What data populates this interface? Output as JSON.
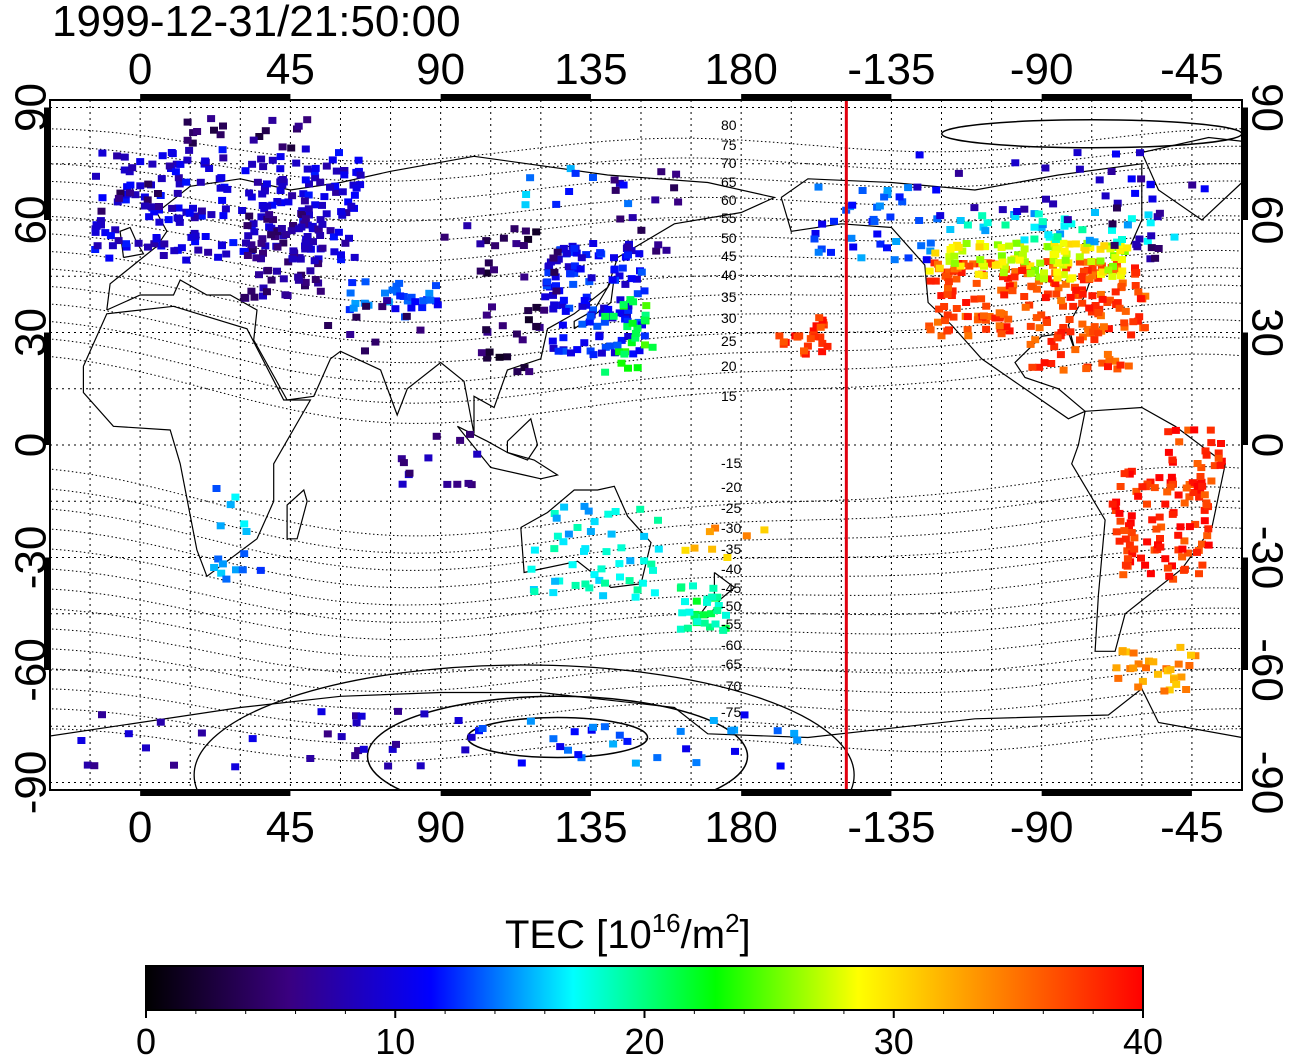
{
  "title": "1999-12-31/21:50:00",
  "map": {
    "lon_range": [
      -27,
      330
    ],
    "lat_range": [
      -92,
      92
    ],
    "top_lon_ticks": [
      {
        "lon": 0,
        "label": "0"
      },
      {
        "lon": 45,
        "label": "45"
      },
      {
        "lon": 90,
        "label": "90"
      },
      {
        "lon": 135,
        "label": "135"
      },
      {
        "lon": 180,
        "label": "180"
      },
      {
        "lon": 225,
        "label": "-135"
      },
      {
        "lon": 270,
        "label": "-90"
      },
      {
        "lon": 315,
        "label": "-45"
      }
    ],
    "bottom_lon_ticks": [
      {
        "lon": 0,
        "label": "0"
      },
      {
        "lon": 45,
        "label": "45"
      },
      {
        "lon": 90,
        "label": "90"
      },
      {
        "lon": 135,
        "label": "135"
      },
      {
        "lon": 180,
        "label": "180"
      },
      {
        "lon": 225,
        "label": "-135"
      },
      {
        "lon": 270,
        "label": "-90"
      },
      {
        "lon": 315,
        "label": "-45"
      }
    ],
    "lat_ticks": [
      {
        "lat": 90,
        "label": "90"
      },
      {
        "lat": 60,
        "label": "60"
      },
      {
        "lat": 30,
        "label": "30"
      },
      {
        "lat": 0,
        "label": "0"
      },
      {
        "lat": -30,
        "label": "-30"
      },
      {
        "lat": -60,
        "label": "-60"
      },
      {
        "lat": -90,
        "label": "-90"
      }
    ],
    "terminator_lon": 211.5,
    "terminator_color": "#e0000f",
    "magnetic_lat_labels": [
      "80",
      "75",
      "70",
      "65",
      "60",
      "55",
      "50",
      "45",
      "40",
      "35",
      "30",
      "25",
      "20",
      "15",
      "-15",
      "-20",
      "-25",
      "-30",
      "-35",
      "-40",
      "-45",
      "-50",
      "-55",
      "-60",
      "-65",
      "-70",
      "-75"
    ]
  },
  "colorbar": {
    "title_text": "TEC  [10",
    "title_sup1": "16",
    "title_mid": "/m",
    "title_sup2": "2",
    "title_end": "]",
    "min": 0,
    "max": 40,
    "tick_labels": [
      "0",
      "10",
      "20",
      "30",
      "40"
    ],
    "stops": [
      "#000000",
      "#3a0080",
      "#0000ff",
      "#00ffff",
      "#00ff00",
      "#ffff00",
      "#ff8000",
      "#ff0000"
    ]
  },
  "tec_regions": [
    {
      "lon": -15,
      "lat": 50,
      "w": 80,
      "h": 30,
      "tec": 9.5,
      "n": 220
    },
    {
      "lon": 30,
      "lat": 40,
      "w": 25,
      "h": 25,
      "tec": 6.5,
      "n": 70
    },
    {
      "lon": 10,
      "lat": 80,
      "w": 40,
      "h": 8,
      "tec": 5,
      "n": 18
    },
    {
      "lon": -15,
      "lat": 63,
      "w": 20,
      "h": 8,
      "tec": 6,
      "n": 10
    },
    {
      "lon": 60,
      "lat": 35,
      "w": 30,
      "h": 10,
      "tec": 13,
      "n": 30
    },
    {
      "lon": 55,
      "lat": 25,
      "w": 30,
      "h": 15,
      "tec": 6,
      "n": 10
    },
    {
      "lon": 120,
      "lat": 25,
      "w": 30,
      "h": 30,
      "tec": 11,
      "n": 120
    },
    {
      "lon": 138,
      "lat": 20,
      "w": 15,
      "h": 20,
      "tec": 22,
      "n": 25
    },
    {
      "lon": 100,
      "lat": 20,
      "w": 20,
      "h": 40,
      "tec": 4,
      "n": 30
    },
    {
      "lon": 140,
      "lat": 50,
      "w": 20,
      "h": 25,
      "tec": 6,
      "n": 15
    },
    {
      "lon": 110,
      "lat": 65,
      "w": 40,
      "h": 10,
      "tec": 14,
      "n": 10
    },
    {
      "lon": 85,
      "lat": 40,
      "w": 40,
      "h": 20,
      "tec": 6,
      "n": 14
    },
    {
      "lon": 200,
      "lat": 50,
      "w": 40,
      "h": 20,
      "tec": 13,
      "n": 40
    },
    {
      "lon": 190,
      "lat": 25,
      "w": 15,
      "h": 10,
      "tec": 38,
      "n": 25
    },
    {
      "lon": 235,
      "lat": 30,
      "w": 65,
      "h": 20,
      "tec": 37,
      "n": 200
    },
    {
      "lon": 235,
      "lat": 45,
      "w": 60,
      "h": 10,
      "tec": 28,
      "n": 100
    },
    {
      "lon": 240,
      "lat": 55,
      "w": 70,
      "h": 8,
      "tec": 17,
      "n": 40
    },
    {
      "lon": 230,
      "lat": 60,
      "w": 90,
      "h": 20,
      "tec": 9,
      "n": 30
    },
    {
      "lon": 290,
      "lat": 50,
      "w": 15,
      "h": 15,
      "tec": 6,
      "n": 12
    },
    {
      "lon": 265,
      "lat": 20,
      "w": 30,
      "h": 10,
      "tec": 37,
      "n": 25
    },
    {
      "lon": 290,
      "lat": -35,
      "w": 30,
      "h": 30,
      "tec": 38,
      "n": 90
    },
    {
      "lon": 305,
      "lat": -15,
      "w": 18,
      "h": 20,
      "tec": 38,
      "n": 35
    },
    {
      "lon": 290,
      "lat": -65,
      "w": 25,
      "h": 12,
      "tec": 33,
      "n": 30
    },
    {
      "lon": 115,
      "lat": -40,
      "w": 40,
      "h": 25,
      "tec": 17,
      "n": 50
    },
    {
      "lon": 160,
      "lat": -50,
      "w": 15,
      "h": 15,
      "tec": 20,
      "n": 30
    },
    {
      "lon": 20,
      "lat": -35,
      "w": 15,
      "h": 25,
      "tec": 15,
      "n": 15
    },
    {
      "lon": -20,
      "lat": -85,
      "w": 120,
      "h": 15,
      "tec": 8,
      "n": 30
    },
    {
      "lon": 100,
      "lat": -85,
      "w": 100,
      "h": 15,
      "tec": 13,
      "n": 30
    },
    {
      "lon": 70,
      "lat": -10,
      "w": 30,
      "h": 15,
      "tec": 7,
      "n": 14
    },
    {
      "lon": 160,
      "lat": -30,
      "w": 30,
      "h": 12,
      "tec": 32,
      "n": 8
    }
  ]
}
